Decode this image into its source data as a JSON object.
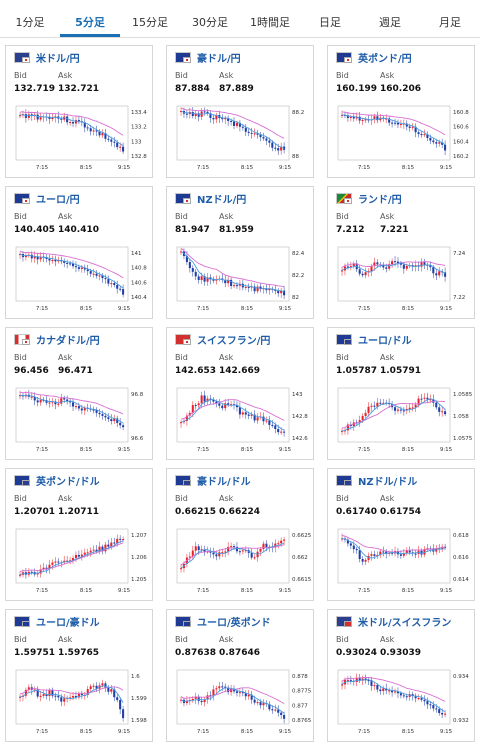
{
  "tabs": [
    {
      "label": "1分足",
      "active": false
    },
    {
      "label": "5分足",
      "active": true
    },
    {
      "label": "15分足",
      "active": false
    },
    {
      "label": "30分足",
      "active": false
    },
    {
      "label": "1時間足",
      "active": false
    },
    {
      "label": "日足",
      "active": false
    },
    {
      "label": "週足",
      "active": false
    },
    {
      "label": "月足",
      "active": false
    }
  ],
  "labels": {
    "bid": "Bid",
    "ask": "Ask"
  },
  "x_ticks": [
    "7:15",
    "8:15",
    "9:15"
  ],
  "colors": {
    "up": "#e8222a",
    "down": "#1e3ea8",
    "ma_short": "#4b9be0",
    "ma_long": "#d86fd2",
    "link": "#1e5ca8"
  },
  "pairs": [
    {
      "name": "米ドル/円",
      "bid": "132.719",
      "ask": "132.721",
      "flag": "us-jp-flag",
      "y_ticks": [
        "133.4",
        "133.2",
        "133",
        "132.8"
      ]
    },
    {
      "name": "豪ドル/円",
      "bid": "87.884",
      "ask": "87.889",
      "flag": "au-jp-flag",
      "y_ticks": [
        "88.2",
        "88"
      ]
    },
    {
      "name": "英ポンド/円",
      "bid": "160.199",
      "ask": "160.206",
      "flag": "gb-jp-flag",
      "y_ticks": [
        "160.8",
        "160.6",
        "160.4",
        "160.2"
      ]
    },
    {
      "name": "ユーロ/円",
      "bid": "140.405",
      "ask": "140.410",
      "flag": "eu-jp-flag",
      "y_ticks": [
        "141",
        "140.8",
        "140.6",
        "140.4"
      ]
    },
    {
      "name": "NZドル/円",
      "bid": "81.947",
      "ask": "81.959",
      "flag": "nz-jp-flag",
      "y_ticks": [
        "82.4",
        "82.2",
        "82"
      ]
    },
    {
      "name": "ランド/円",
      "bid": "7.212",
      "ask": "7.221",
      "flag": "za-jp-flag",
      "y_ticks": [
        "7.24",
        "7.22"
      ]
    },
    {
      "name": "カナダドル/円",
      "bid": "96.456",
      "ask": "96.471",
      "flag": "ca-jp-flag",
      "y_ticks": [
        "96.8",
        "96.6"
      ]
    },
    {
      "name": "スイスフラン/円",
      "bid": "142.653",
      "ask": "142.669",
      "flag": "ch-jp-flag",
      "y_ticks": [
        "143",
        "142.8",
        "142.6"
      ]
    },
    {
      "name": "ユーロ/ドル",
      "bid": "1.05787",
      "ask": "1.05791",
      "flag": "eu-us-flag",
      "y_ticks": [
        "1.0585",
        "1.058",
        "1.0575"
      ]
    },
    {
      "name": "英ポンド/ドル",
      "bid": "1.20701",
      "ask": "1.20711",
      "flag": "gb-us-flag",
      "y_ticks": [
        "1.207",
        "1.206",
        "1.205"
      ]
    },
    {
      "name": "豪ドル/ドル",
      "bid": "0.66215",
      "ask": "0.66224",
      "flag": "au-us-flag",
      "y_ticks": [
        "0.6625",
        "0.662",
        "0.6615"
      ]
    },
    {
      "name": "NZドル/ドル",
      "bid": "0.61740",
      "ask": "0.61754",
      "flag": "nz-us-flag",
      "y_ticks": [
        "0.618",
        "0.616",
        "0.614"
      ]
    },
    {
      "name": "ユーロ/豪ドル",
      "bid": "1.59751",
      "ask": "1.59765",
      "flag": "eu-au-flag",
      "y_ticks": [
        "1.6",
        "1.599",
        "1.598"
      ]
    },
    {
      "name": "ユーロ/英ポンド",
      "bid": "0.87638",
      "ask": "0.87646",
      "flag": "eu-gb-flag",
      "y_ticks": [
        "0.878",
        "0.8775",
        "0.877",
        "0.8765"
      ]
    },
    {
      "name": "米ドル/スイスフラン",
      "bid": "0.93024",
      "ask": "0.93039",
      "flag": "us-ch-flag",
      "y_ticks": [
        "0.934",
        "0.932"
      ]
    }
  ]
}
